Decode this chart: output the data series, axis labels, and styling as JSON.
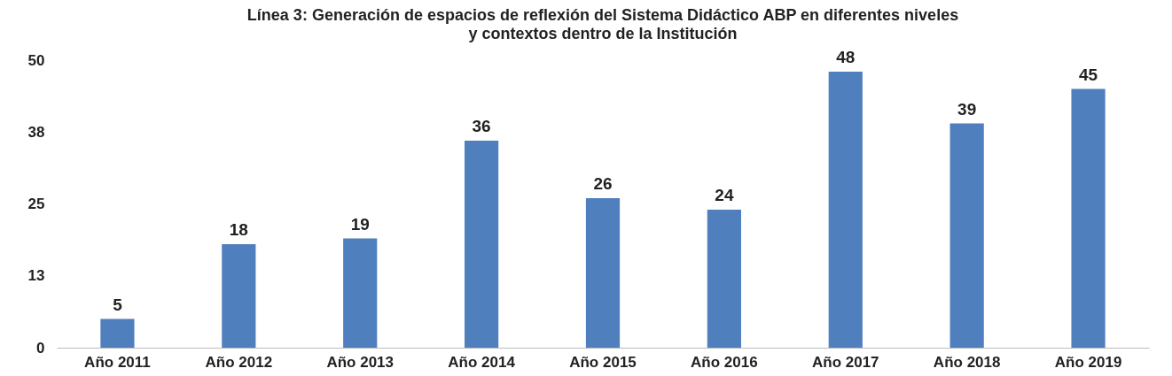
{
  "chart_data": {
    "type": "bar",
    "title": "Línea 3: Generación de espacios de reflexión del Sistema Didáctico ABP en diferentes niveles\ny contextos dentro de la Institución",
    "categories": [
      "Año 2011",
      "Año 2012",
      "Año 2013",
      "Año 2014",
      "Año 2015",
      "Año 2016",
      "Año 2017",
      "Año 2018",
      "Año 2019"
    ],
    "values": [
      5,
      18,
      19,
      36,
      26,
      24,
      48,
      39,
      45
    ],
    "color": "#4f7fbc",
    "ylim": [
      0,
      50
    ],
    "yticks": [
      0,
      {
        "value": 12.5,
        "label": "13"
      },
      25,
      {
        "value": 37.5,
        "label": "38"
      },
      50
    ],
    "data_labels": true,
    "grid": false
  }
}
